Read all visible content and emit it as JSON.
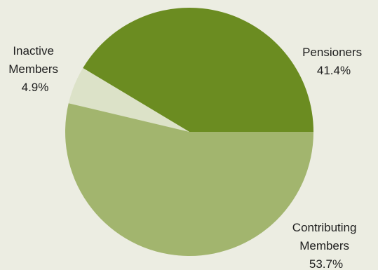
{
  "chart_data": {
    "type": "pie",
    "slices": [
      {
        "label_lines": [
          "Pensioners",
          "41.4%"
        ],
        "name": "Pensioners",
        "value": 41.4,
        "color": "#6B8C21"
      },
      {
        "label_lines": [
          "Contributing",
          "Members",
          "53.7%"
        ],
        "name": "Contributing Members",
        "value": 53.7,
        "color": "#A2B56E"
      },
      {
        "label_lines": [
          "Inactive",
          "Members",
          "4.9%"
        ],
        "name": "Inactive Members",
        "value": 4.9,
        "color": "#DCE2C8"
      }
    ]
  },
  "colors": {
    "background": "#ECEDE2",
    "text": "#1f1f1f"
  }
}
